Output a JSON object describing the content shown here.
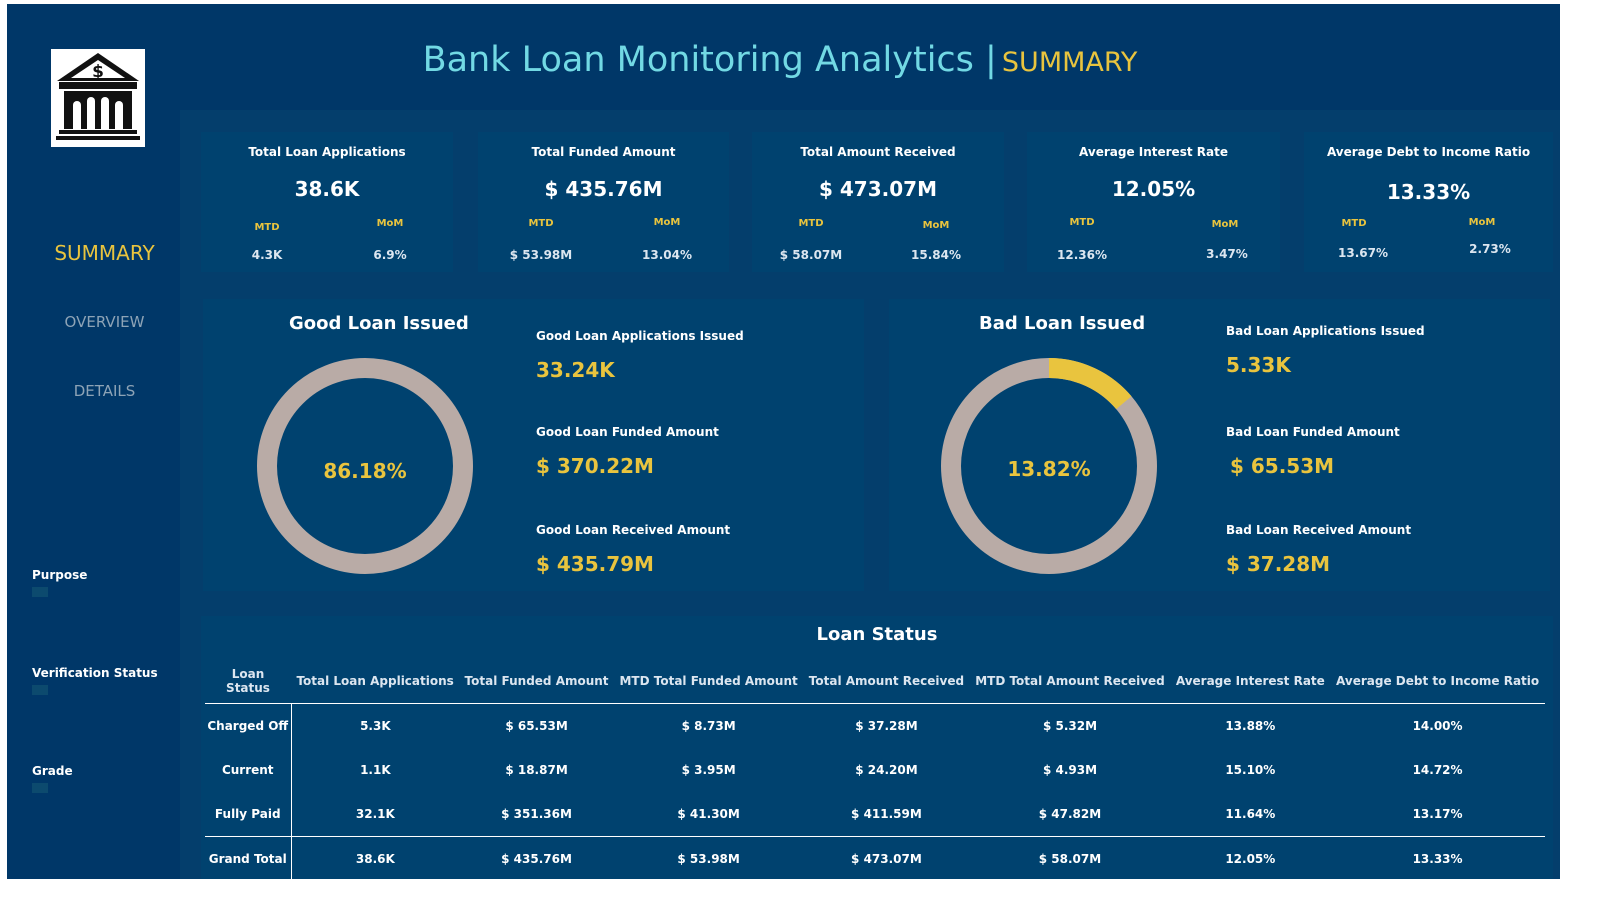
{
  "header": {
    "title": "Bank Loan Monitoring Analytics |",
    "subtitle": "SUMMARY"
  },
  "sidebar": {
    "logo_icon": "bank-building-icon",
    "nav": [
      {
        "label": "SUMMARY",
        "active": true
      },
      {
        "label": "OVERVIEW",
        "active": false
      },
      {
        "label": "DETAILS",
        "active": false
      }
    ],
    "filters": [
      {
        "label": "Purpose"
      },
      {
        "label": "Verification Status"
      },
      {
        "label": "Grade"
      }
    ]
  },
  "kpis": [
    {
      "label": "Total Loan Applications",
      "value": "38.6K",
      "mtd_label": "MTD",
      "mom_label": "MoM",
      "mtd": "4.3K",
      "mom": "6.9%"
    },
    {
      "label": "Total Funded Amount",
      "value": "$ 435.76M",
      "mtd_label": "MTD",
      "mom_label": "MoM",
      "mtd": "$ 53.98M",
      "mom": "13.04%"
    },
    {
      "label": "Total Amount Received",
      "value": "$ 473.07M",
      "mtd_label": "MTD",
      "mom_label": "MoM",
      "mtd": "$ 58.07M",
      "mom": "15.84%"
    },
    {
      "label": "Average Interest Rate",
      "value": "12.05%",
      "mtd_label": "MTD",
      "mom_label": "MoM",
      "mtd": "12.36%",
      "mom": "3.47%"
    },
    {
      "label": "Average Debt to Income Ratio",
      "value": "13.33%",
      "mtd_label": "MTD",
      "mom_label": "MoM",
      "mtd": "13.67%",
      "mom": "2.73%"
    }
  ],
  "good_loan": {
    "title": "Good Loan Issued",
    "percent_label": "86.18%",
    "percent": 86.18,
    "applications_label": "Good Loan Applications Issued",
    "applications": "33.24K",
    "funded_label": "Good Loan Funded Amount",
    "funded": "$ 370.22M",
    "received_label": "Good Loan Received Amount",
    "received": "$ 435.79M"
  },
  "bad_loan": {
    "title": "Bad Loan Issued",
    "percent_label": "13.82%",
    "percent": 13.82,
    "applications_label": "Bad Loan Applications Issued",
    "applications": "5.33K",
    "funded_label": "Bad Loan Funded Amount",
    "funded": "$ 65.53M",
    "received_label": "Bad Loan Received Amount",
    "received": "$ 37.28M"
  },
  "colors": {
    "accent_yellow": "#e9c43e",
    "ring_grey": "#b9aba6",
    "title_cyan": "#72d9e4",
    "background": "#003768"
  },
  "loan_status": {
    "title": "Loan Status",
    "columns": [
      "Loan Status",
      "Total Loan Applications",
      "Total Funded Amount",
      "MTD Total Funded Amount",
      "Total Amount Received",
      "MTD Total Amount Received",
      "Average Interest Rate",
      "Average Debt to Income Ratio"
    ],
    "rows": [
      [
        "Charged Off",
        "5.3K",
        "$ 65.53M",
        "$ 8.73M",
        "$ 37.28M",
        "$ 5.32M",
        "13.88%",
        "14.00%"
      ],
      [
        "Current",
        "1.1K",
        "$ 18.87M",
        "$ 3.95M",
        "$ 24.20M",
        "$ 4.93M",
        "15.10%",
        "14.72%"
      ],
      [
        "Fully Paid",
        "32.1K",
        "$ 351.36M",
        "$ 41.30M",
        "$ 411.59M",
        "$ 47.82M",
        "11.64%",
        "13.17%"
      ]
    ],
    "total": [
      "Grand Total",
      "38.6K",
      "$ 435.76M",
      "$ 53.98M",
      "$ 473.07M",
      "$ 58.07M",
      "12.05%",
      "13.33%"
    ]
  }
}
